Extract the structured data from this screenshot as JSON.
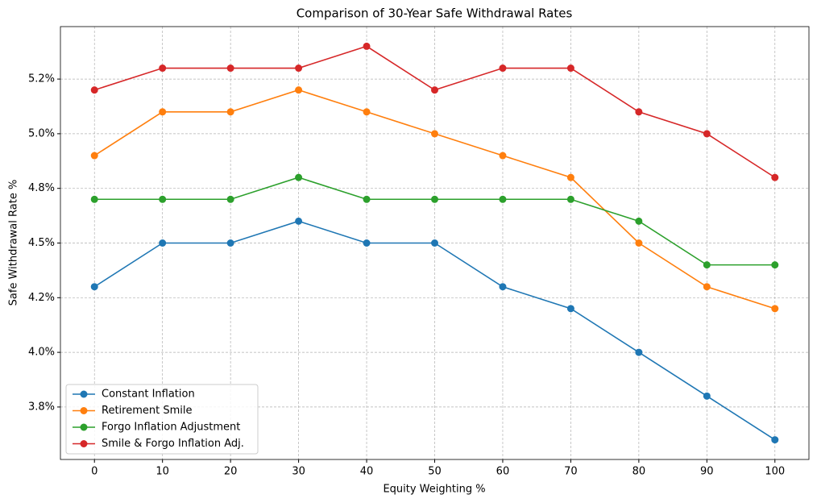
{
  "chart_data": {
    "type": "line",
    "title": "Comparison of 30-Year Safe Withdrawal Rates",
    "x_label": "Equity Weighting %",
    "y_label": "Safe Withdrawal Rate %",
    "x": [
      0,
      10,
      20,
      30,
      40,
      50,
      60,
      70,
      80,
      90,
      100
    ],
    "series": [
      {
        "name": "Constant Inflation",
        "color": "#1f77b4",
        "values": [
          4.3,
          4.5,
          4.5,
          4.6,
          4.5,
          4.5,
          4.3,
          4.2,
          4.0,
          3.8,
          3.6
        ]
      },
      {
        "name": "Retirement Smile",
        "color": "#ff7f0e",
        "values": [
          4.9,
          5.1,
          5.1,
          5.2,
          5.1,
          5.0,
          4.9,
          4.8,
          4.5,
          4.3,
          4.2
        ]
      },
      {
        "name": "Forgo Inflation Adjustment",
        "color": "#2ca02c",
        "values": [
          4.7,
          4.7,
          4.7,
          4.8,
          4.7,
          4.7,
          4.7,
          4.7,
          4.6,
          4.4,
          4.4
        ]
      },
      {
        "name": "Smile & Forgo Inflation Adj.",
        "color": "#d62728",
        "values": [
          5.2,
          5.3,
          5.3,
          5.3,
          5.4,
          5.2,
          5.3,
          5.3,
          5.1,
          5.0,
          4.8
        ]
      }
    ],
    "xlim": [
      -5,
      105
    ],
    "xticks": [
      0,
      10,
      20,
      30,
      40,
      50,
      60,
      70,
      80,
      90,
      100
    ],
    "ylim": [
      3.51,
      5.49
    ],
    "yticks": [
      {
        "value": 3.75,
        "label": "3.8%"
      },
      {
        "value": 4.0,
        "label": "4.0%"
      },
      {
        "value": 4.25,
        "label": "4.2%"
      },
      {
        "value": 4.5,
        "label": "4.5%"
      },
      {
        "value": 4.75,
        "label": "4.8%"
      },
      {
        "value": 5.0,
        "label": "5.0%"
      },
      {
        "value": 5.25,
        "label": "5.2%"
      }
    ],
    "grid": true,
    "legend": "lower left"
  }
}
